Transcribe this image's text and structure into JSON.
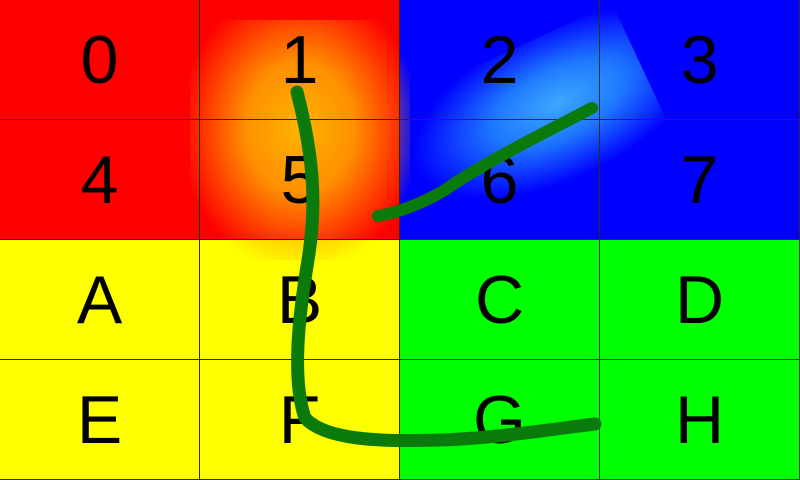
{
  "grid": {
    "cells": [
      "0",
      "1",
      "2",
      "3",
      "4",
      "5",
      "6",
      "7",
      "A",
      "B",
      "C",
      "D",
      "E",
      "F",
      "G",
      "H"
    ]
  },
  "colors": {
    "red": "#ff0000",
    "blue": "#0000ff",
    "yellow": "#ffff00",
    "green": "#00ff00",
    "stroke": "#0a7a0a",
    "gridline": "#2a2a2a"
  }
}
